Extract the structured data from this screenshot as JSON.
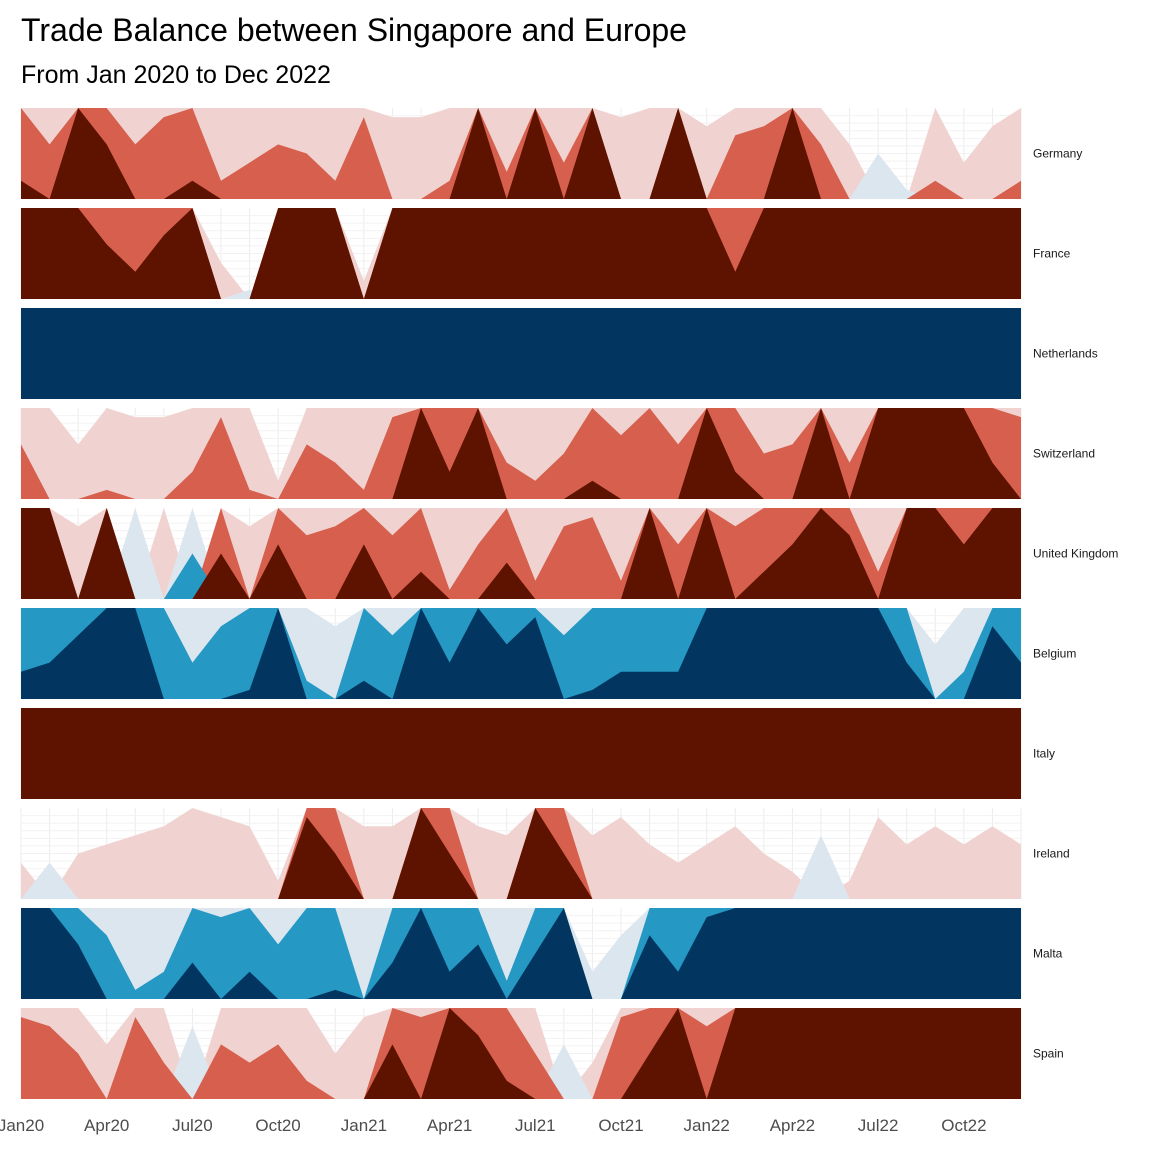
{
  "title": "Trade Balance between Singapore and Europe",
  "subtitle": "From Jan 2020 to Dec 2022",
  "chart_data": {
    "type": "horizon",
    "x": [
      "Jan20",
      "Feb20",
      "Mar20",
      "Apr20",
      "May20",
      "Jun20",
      "Jul20",
      "Aug20",
      "Sep20",
      "Oct20",
      "Nov20",
      "Dec20",
      "Jan21",
      "Feb21",
      "Mar21",
      "Apr21",
      "May21",
      "Jun21",
      "Jul21",
      "Aug21",
      "Sep21",
      "Oct21",
      "Nov21",
      "Dec21",
      "Jan22",
      "Feb22",
      "Mar22",
      "Apr22",
      "May22",
      "Jun22",
      "Jul22",
      "Aug22",
      "Sep22",
      "Oct22",
      "Nov22",
      "Dec22"
    ],
    "x_tick_labels": [
      "Jan20",
      "Apr20",
      "Jul20",
      "Oct20",
      "Jan21",
      "Apr21",
      "Jul21",
      "Oct21",
      "Jan22",
      "Apr22",
      "Jul22",
      "Oct22"
    ],
    "band_levels": 3,
    "colors": {
      "pos": [
        "#f0d3d1",
        "#d6604d",
        "#5e1300"
      ],
      "neg": [
        "#dce6ef",
        "#2698c4",
        "#023660"
      ]
    },
    "series": [
      {
        "name": "Germany",
        "values": [
          2.2,
          1.6,
          3.0,
          2.6,
          1.6,
          1.9,
          2.2,
          1.2,
          1.4,
          1.6,
          1.5,
          1.2,
          1.9,
          0.9,
          0.9,
          1.2,
          3.0,
          1.3,
          3.0,
          1.4,
          3.0,
          0.9,
          1.0,
          3.0,
          0.8,
          1.7,
          1.8,
          3.0,
          1.6,
          0.6,
          -0.5,
          -0.1,
          1.2,
          0.4,
          0.8,
          1.2
        ]
      },
      {
        "name": "France",
        "values": [
          3.0,
          3.0,
          3.0,
          2.6,
          2.3,
          2.7,
          3.0,
          0.4,
          -0.1,
          3.0,
          3.0,
          3.0,
          0.2,
          3.0,
          3.0,
          3.0,
          3.0,
          3.0,
          3.0,
          3.0,
          3.0,
          3.0,
          3.0,
          3.0,
          3.0,
          2.3,
          3.0,
          3.0,
          3.0,
          3.0,
          3.0,
          3.0,
          3.0,
          3.0,
          3.0,
          3.0
        ]
      },
      {
        "name": "Netherlands",
        "values": [
          -3.0,
          -3.0,
          -3.0,
          -3.0,
          -3.0,
          -3.0,
          -3.0,
          -3.0,
          -3.0,
          -3.0,
          -3.0,
          -3.0,
          -3.0,
          -3.0,
          -3.0,
          -3.0,
          -3.0,
          -3.0,
          -3.0,
          -3.0,
          -3.0,
          -3.0,
          -3.0,
          -3.0,
          -3.0,
          -3.0,
          -3.0,
          -3.0,
          -3.0,
          -3.0,
          -3.0,
          -3.0,
          -3.0,
          -3.0,
          -3.0,
          -3.0
        ]
      },
      {
        "name": "Switzerland",
        "values": [
          1.6,
          1.0,
          0.6,
          1.1,
          0.9,
          0.9,
          1.3,
          1.9,
          1.1,
          0.2,
          1.6,
          1.4,
          1.1,
          1.9,
          3.0,
          2.3,
          3.0,
          1.4,
          1.2,
          1.5,
          2.2,
          1.7,
          2.0,
          1.6,
          3.0,
          2.3,
          1.5,
          1.6,
          3.0,
          1.4,
          3.0,
          3.0,
          3.0,
          3.0,
          2.4,
          1.9
        ]
      },
      {
        "name": "United Kingdom",
        "values": [
          3.0,
          3.0,
          0.8,
          3.0,
          -1.0,
          1.0,
          -1.5,
          2.5,
          0.8,
          2.6,
          1.7,
          1.8,
          2.6,
          1.7,
          2.3,
          1.1,
          1.6,
          2.4,
          1.2,
          1.8,
          1.9,
          1.2,
          3.0,
          1.6,
          3.0,
          1.8,
          2.3,
          2.6,
          3.0,
          2.7,
          1.3,
          3.0,
          3.0,
          2.6,
          3.0,
          3.0
        ]
      },
      {
        "name": "Belgium",
        "values": [
          -2.3,
          -2.4,
          -2.7,
          -3.0,
          -3.0,
          -2.0,
          -1.4,
          -1.8,
          -2.1,
          -3.0,
          -1.2,
          -0.8,
          -2.2,
          -1.7,
          -3.0,
          -2.4,
          -3.0,
          -2.6,
          -2.9,
          -1.7,
          -2.1,
          -2.3,
          -2.3,
          -2.3,
          -3.0,
          -3.0,
          -3.0,
          -3.0,
          -3.0,
          -3.0,
          -3.0,
          -2.4,
          -0.6,
          -1.3,
          -2.8,
          -2.4
        ]
      },
      {
        "name": "Italy",
        "values": [
          3.0,
          3.0,
          3.0,
          3.0,
          3.0,
          3.0,
          3.0,
          3.0,
          3.0,
          3.0,
          3.0,
          3.0,
          3.0,
          3.0,
          3.0,
          3.0,
          3.0,
          3.0,
          3.0,
          3.0,
          3.0,
          3.0,
          3.0,
          3.0,
          3.0,
          3.0,
          3.0,
          3.0,
          3.0,
          3.0,
          3.0,
          3.0,
          3.0,
          3.0,
          3.0,
          3.0
        ]
      },
      {
        "name": "Ireland",
        "values": [
          0.4,
          -0.4,
          0.5,
          0.6,
          0.7,
          0.8,
          1.0,
          0.9,
          0.8,
          0.2,
          2.9,
          2.5,
          0.8,
          0.8,
          3.0,
          2.5,
          0.8,
          0.7,
          3.0,
          2.5,
          0.7,
          0.9,
          0.6,
          0.4,
          0.6,
          0.8,
          0.5,
          0.3,
          -0.7,
          0.2,
          0.9,
          0.6,
          0.8,
          0.6,
          0.8,
          0.6
        ]
      },
      {
        "name": "Malta",
        "values": [
          -3.0,
          -3.0,
          -2.6,
          -1.7,
          -1.1,
          -1.3,
          -2.4,
          -1.9,
          -2.3,
          -1.6,
          -2.0,
          -2.1,
          -1.0,
          -2.4,
          -3.0,
          -2.3,
          -2.6,
          -1.2,
          -2.5,
          -3.0,
          -0.3,
          -0.7,
          -2.7,
          -2.3,
          -2.9,
          -3.0,
          -3.0,
          -3.0,
          -3.0,
          -3.0,
          -3.0,
          -3.0,
          -3.0,
          -3.0,
          -3.0,
          -3.0
        ]
      },
      {
        "name": "Spain",
        "values": [
          1.9,
          1.8,
          1.5,
          0.6,
          1.9,
          1.4,
          -0.8,
          1.6,
          1.4,
          1.6,
          1.2,
          0.5,
          0.9,
          2.6,
          1.9,
          3.0,
          2.7,
          2.2,
          1.5,
          -0.6,
          0.4,
          1.9,
          2.5,
          3.0,
          1.8,
          3.0,
          3.0,
          3.0,
          3.0,
          3.0,
          3.0,
          3.0,
          3.0,
          3.0,
          3.0,
          3.0
        ]
      }
    ]
  }
}
